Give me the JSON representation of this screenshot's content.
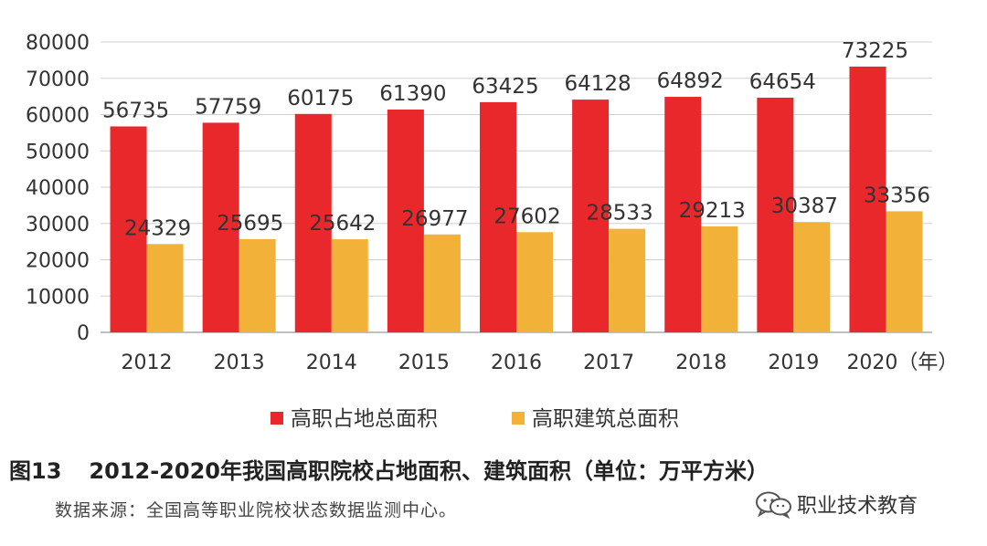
{
  "chart_data": {
    "type": "bar",
    "categories": [
      "2012",
      "2013",
      "2014",
      "2015",
      "2016",
      "2017",
      "2018",
      "2019",
      "2020"
    ],
    "x_unit_label": "（年）",
    "series": [
      {
        "name": "高职占地总面积",
        "color": "#e8282a",
        "values": [
          56735,
          57759,
          60175,
          61390,
          63425,
          64128,
          64892,
          64654,
          73225
        ]
      },
      {
        "name": "高职建筑总面积",
        "color": "#f2b23a",
        "values": [
          24329,
          25695,
          25642,
          26977,
          27602,
          28533,
          29213,
          30387,
          33356
        ]
      }
    ],
    "ylim": [
      0,
      80000
    ],
    "yticks": [
      0,
      10000,
      20000,
      30000,
      40000,
      50000,
      60000,
      70000,
      80000
    ],
    "grid": true,
    "legend_position": "bottom",
    "data_labels": true
  },
  "caption": {
    "figure_no": "图13",
    "text": "2012-2020年我国高职院校占地面积、建筑面积（单位：万平方米）"
  },
  "source_note": "数据来源：全国高等职业院校状态数据监测中心。",
  "watermark": {
    "text": "职业技术教育",
    "icon": "wechat-icon"
  }
}
